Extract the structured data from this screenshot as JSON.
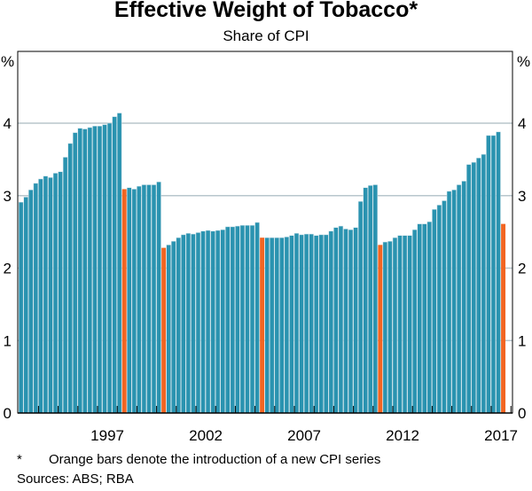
{
  "chart_data": {
    "type": "bar",
    "title": "Effective Weight of Tobacco*",
    "subtitle": "Share of CPI",
    "ylabel": "%",
    "ylim": [
      0,
      4.5
    ],
    "yticks": [
      0,
      1,
      2,
      3,
      4
    ],
    "grid": true,
    "x_start": 1993.0,
    "x_step": 0.25,
    "xticks": [
      "1997",
      "2002",
      "2007",
      "2012",
      "2017"
    ],
    "xtick_values": [
      1997,
      2002,
      2007,
      2012,
      2017
    ],
    "year_range": [
      1993,
      2018
    ],
    "values": [
      2.91,
      2.98,
      3.08,
      3.17,
      3.23,
      3.27,
      3.25,
      3.31,
      3.33,
      3.53,
      3.72,
      3.87,
      3.93,
      3.92,
      3.94,
      3.96,
      3.96,
      3.98,
      4.0,
      4.09,
      4.14,
      3.09,
      3.11,
      3.09,
      3.13,
      3.15,
      3.15,
      3.15,
      3.19,
      2.28,
      2.32,
      2.37,
      2.42,
      2.46,
      2.48,
      2.47,
      2.49,
      2.51,
      2.52,
      2.51,
      2.52,
      2.53,
      2.57,
      2.57,
      2.58,
      2.59,
      2.59,
      2.59,
      2.63,
      2.42,
      2.42,
      2.42,
      2.42,
      2.42,
      2.43,
      2.45,
      2.48,
      2.46,
      2.47,
      2.47,
      2.45,
      2.46,
      2.46,
      2.51,
      2.56,
      2.58,
      2.54,
      2.53,
      2.56,
      2.92,
      3.11,
      3.14,
      3.15,
      2.32,
      2.36,
      2.37,
      2.42,
      2.45,
      2.45,
      2.45,
      2.53,
      2.61,
      2.61,
      2.64,
      2.81,
      2.87,
      2.93,
      3.06,
      3.08,
      3.15,
      3.2,
      3.43,
      3.46,
      3.52,
      3.57,
      3.83,
      3.83,
      3.88,
      2.61
    ],
    "new_series_indices": [
      21,
      29,
      49,
      73,
      98
    ],
    "colors": {
      "bar": "#2a93b0",
      "new_series": "#f26522",
      "grid": "#b8c6cc"
    }
  },
  "footnote": {
    "marker": "*",
    "text": "Orange bars denote the introduction of a new CPI series"
  },
  "sources": "Sources: ABS; RBA"
}
